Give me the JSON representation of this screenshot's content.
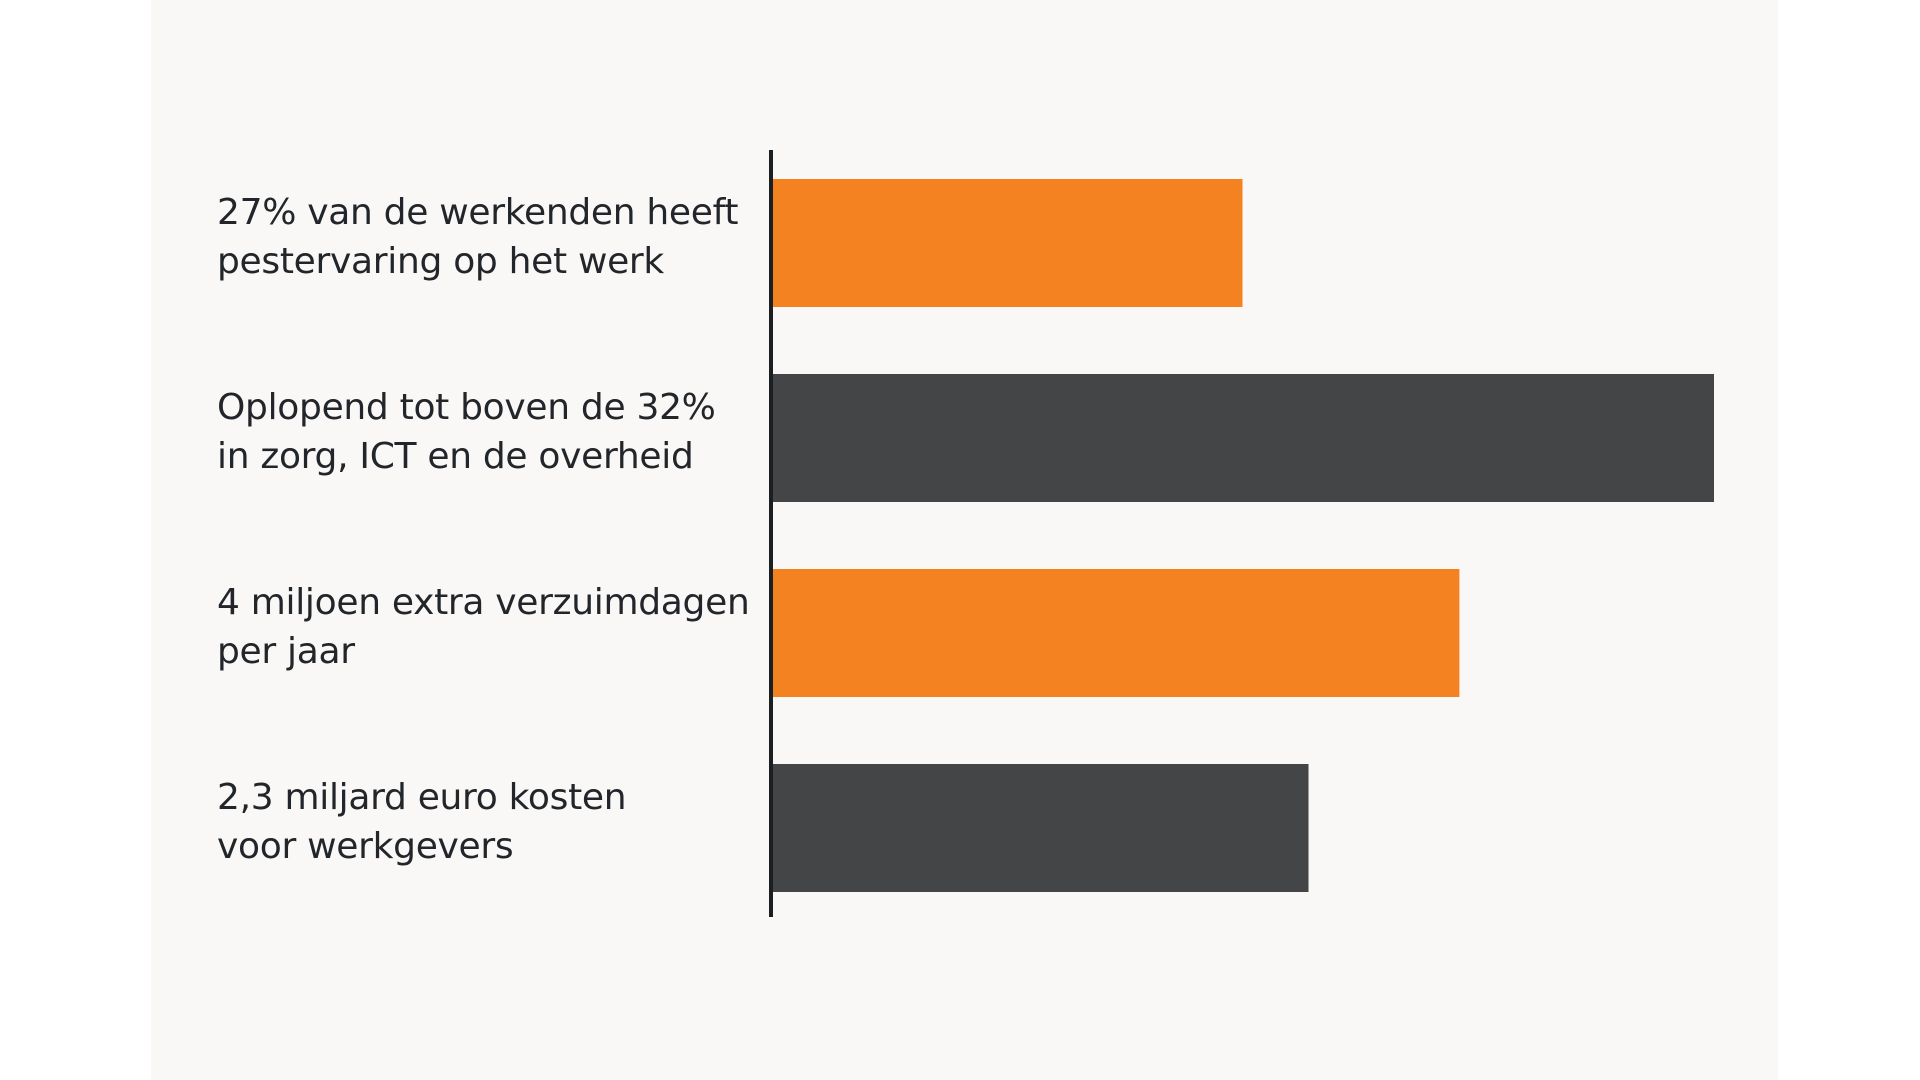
{
  "colors": {
    "background": "#f9f8f6",
    "orange": "#f58220",
    "dark": "#434547",
    "axis": "#1c1f22",
    "text": "#22262a"
  },
  "chart_data": {
    "type": "bar",
    "orientation": "horizontal",
    "title": "",
    "xlabel": "",
    "ylabel": "",
    "grid": false,
    "legend": "none",
    "categories": [
      {
        "lines": [
          "27% van de werkenden heeft",
          "pestervaring op het werk"
        ],
        "color": "orange"
      },
      {
        "lines": [
          "Oplopend tot boven de 32%",
          "in zorg, ICT en de overheid"
        ],
        "color": "dark"
      },
      {
        "lines": [
          "4 miljoen extra verzuimdagen",
          "per jaar"
        ],
        "color": "orange"
      },
      {
        "lines": [
          "2,3 miljard euro kosten",
          "voor werkgevers"
        ],
        "color": "dark"
      }
    ],
    "values": [
      0.5,
      1.0,
      0.73,
      0.57
    ],
    "xlim": [
      0,
      1
    ]
  }
}
